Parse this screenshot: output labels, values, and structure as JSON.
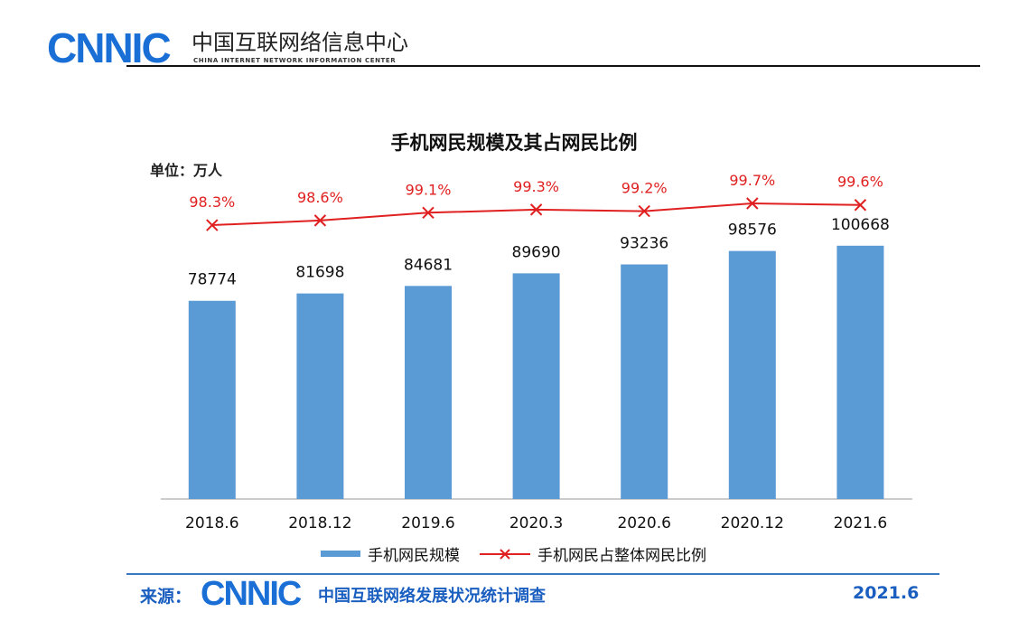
{
  "header": {
    "logo": "CNNIC",
    "org_name": "中国互联网络信息中心",
    "org_name_en": "CHINA INTERNET NETWORK INFORMATION CENTER"
  },
  "chart_data": {
    "type": "bar+line",
    "title": "手机网民规模及其占网民比例",
    "unit_label": "单位：万人",
    "categories": [
      "2018.6",
      "2018.12",
      "2019.6",
      "2020.3",
      "2020.6",
      "2020.12",
      "2021.6"
    ],
    "series": [
      {
        "name": "手机网民规模",
        "type": "bar",
        "values": [
          78774,
          81698,
          84681,
          89690,
          93236,
          98576,
          100668
        ],
        "color": "#5b9bd5"
      },
      {
        "name": "手机网民占整体网民比例",
        "type": "line",
        "values": [
          98.3,
          98.6,
          99.1,
          99.3,
          99.2,
          99.7,
          99.6
        ],
        "labels": [
          "98.3%",
          "98.6%",
          "99.1%",
          "99.3%",
          "99.2%",
          "99.7%",
          "99.6%"
        ],
        "color": "#e02020",
        "marker": "x"
      }
    ],
    "ylim": [
      0,
      120000
    ],
    "y2lim": [
      95,
      100.5
    ],
    "grid": false,
    "legend": "bottom"
  },
  "footer": {
    "source_label": "来源：",
    "logo": "CNNIC",
    "report_name": "中国互联网络发展状况统计调查",
    "date": "2021.6"
  }
}
